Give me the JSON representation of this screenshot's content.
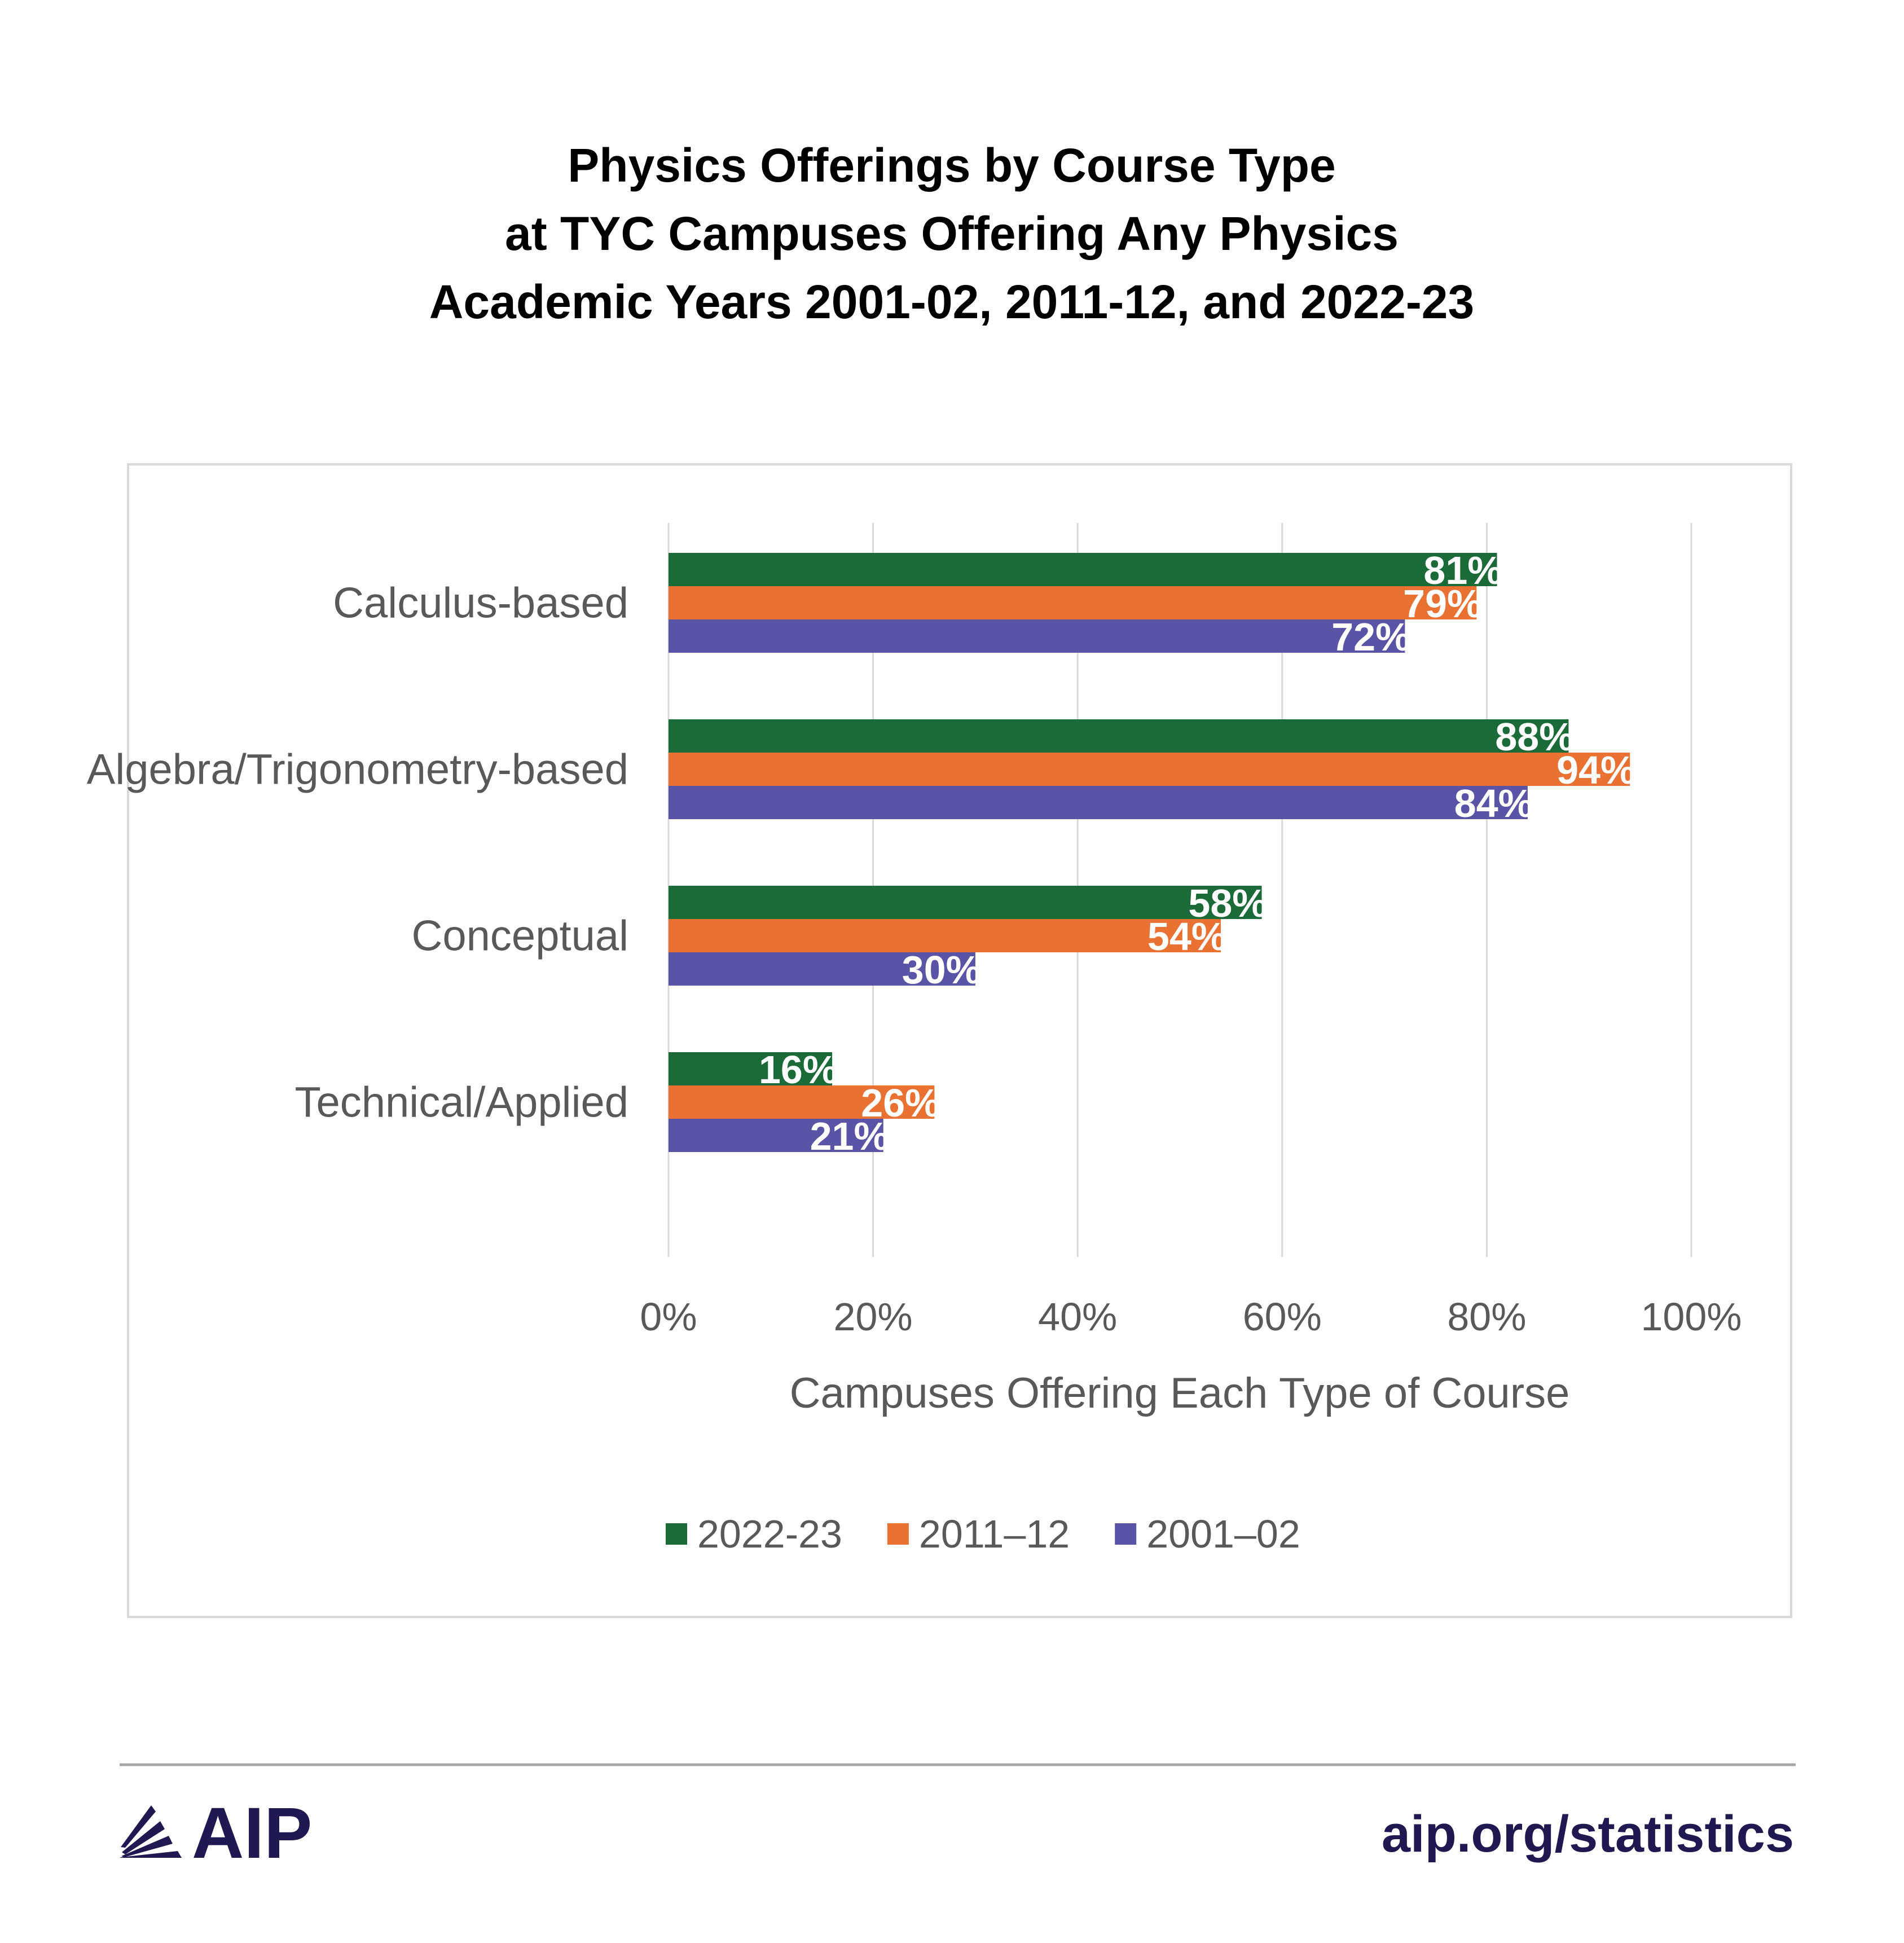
{
  "chart_data": {
    "type": "bar",
    "orientation": "horizontal",
    "title": [
      "Physics Offerings by Course Type",
      "at TYC Campuses Offering Any Physics",
      "Academic Years 2001-02, 2011-12, and 2022-23"
    ],
    "categories": [
      "Calculus-based",
      "Algebra/Trigonometry-based",
      "Conceptual",
      "Technical/Applied"
    ],
    "series": [
      {
        "name": "2022-23",
        "color": "#1a6b37",
        "values": [
          81,
          88,
          58,
          16
        ]
      },
      {
        "name": "2011–12",
        "color": "#e97132",
        "values": [
          79,
          94,
          54,
          26
        ]
      },
      {
        "name": "2001–02",
        "color": "#5a54a6",
        "values": [
          72,
          84,
          30,
          21
        ]
      }
    ],
    "data_labels": [
      [
        "81%",
        "88%",
        "58%",
        "16%"
      ],
      [
        "79%",
        "94%",
        "54%",
        "26%"
      ],
      [
        "72%",
        "84%",
        "30%",
        "21%"
      ]
    ],
    "xlabel": "Campuses Offering Each Type of Course",
    "ylabel": "",
    "xlim": [
      0,
      100
    ],
    "xticks": [
      "0%",
      "20%",
      "40%",
      "60%",
      "80%",
      "100%"
    ],
    "grid": true,
    "legend": "bottom"
  },
  "footer": {
    "logo_text": "AIP",
    "url": "aip.org/statistics",
    "brand_color": "#1f1851"
  }
}
